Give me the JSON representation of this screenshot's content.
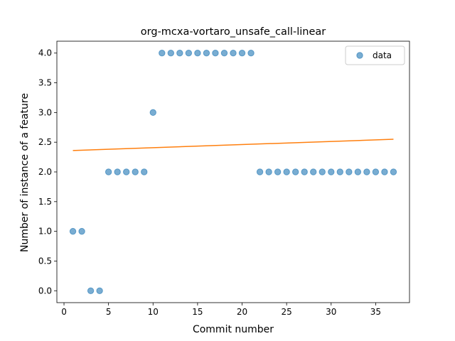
{
  "chart_data": {
    "type": "scatter",
    "title": "org-mcxa-vortaro_unsafe_call-linear",
    "xlabel": "Commit number",
    "ylabel": "Number of instance of a feature",
    "xlim": [
      -0.8,
      38.8
    ],
    "ylim": [
      -0.2,
      4.2
    ],
    "xticks": [
      0,
      5,
      10,
      15,
      20,
      25,
      30,
      35
    ],
    "xtick_labels": [
      "0",
      "5",
      "10",
      "15",
      "20",
      "25",
      "30",
      "35"
    ],
    "yticks": [
      0.0,
      0.5,
      1.0,
      1.5,
      2.0,
      2.5,
      3.0,
      3.5,
      4.0
    ],
    "ytick_labels": [
      "0.0",
      "0.5",
      "1.0",
      "1.5",
      "2.0",
      "2.5",
      "3.0",
      "3.5",
      "4.0"
    ],
    "grid": false,
    "legend_position": "top-right",
    "series": [
      {
        "name": "data",
        "kind": "scatter",
        "color": "#1f77b4",
        "x": [
          1,
          2,
          3,
          4,
          5,
          6,
          7,
          8,
          9,
          10,
          11,
          12,
          13,
          14,
          15,
          16,
          17,
          18,
          19,
          20,
          21,
          22,
          23,
          24,
          25,
          26,
          27,
          28,
          29,
          30,
          31,
          32,
          33,
          34,
          35,
          36,
          37
        ],
        "y": [
          1,
          1,
          0,
          0,
          2,
          2,
          2,
          2,
          2,
          3,
          4,
          4,
          4,
          4,
          4,
          4,
          4,
          4,
          4,
          4,
          4,
          2,
          2,
          2,
          2,
          2,
          2,
          2,
          2,
          2,
          2,
          2,
          2,
          2,
          2,
          2,
          2
        ]
      },
      {
        "kind": "line",
        "color": "#ff7f0e",
        "x": [
          1,
          37
        ],
        "y": [
          2.36,
          2.55
        ]
      }
    ]
  }
}
